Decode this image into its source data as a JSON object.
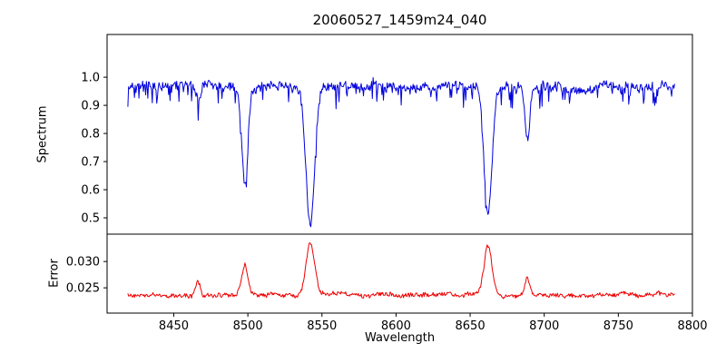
{
  "figure": {
    "background": "#ffffff",
    "frame_color": "#000000",
    "tick_color": "#000000",
    "text_color": "#000000"
  },
  "chart_data": [
    {
      "type": "line",
      "name": "spectrum",
      "title": "20060527_1459m24_040",
      "ylabel": "Spectrum",
      "line_color": "#0000dd",
      "xlim": [
        8405,
        8800
      ],
      "ylim": [
        0.442,
        1.152
      ],
      "yticks": [
        0.5,
        0.6,
        0.7,
        0.8,
        0.9,
        1.0
      ],
      "ytick_decimals": 1,
      "xticks": [],
      "x_start": 8419,
      "x_end": 8788,
      "step": 0.5,
      "continuum": 0.968,
      "noise": 0.013,
      "spike": 0.07,
      "features": [
        {
          "center": 8466.5,
          "amplitude": -0.055,
          "sigma": 1.5
        },
        {
          "center": 8498.0,
          "amplitude": -0.33,
          "sigma": 2.1
        },
        {
          "center": 8542.1,
          "amplitude": -0.49,
          "sigma": 2.9
        },
        {
          "center": 8662.1,
          "amplitude": -0.46,
          "sigma": 2.6
        },
        {
          "center": 8688.6,
          "amplitude": -0.18,
          "sigma": 1.7
        }
      ],
      "grid": false,
      "legend": "none"
    },
    {
      "type": "line",
      "name": "error",
      "ylabel": "Error",
      "xlabel": "Wavelength",
      "line_color": "#ee0000",
      "xlim": [
        8405,
        8800
      ],
      "ylim": [
        0.0202,
        0.0352
      ],
      "yticks": [
        0.025,
        0.03
      ],
      "ytick_decimals": 3,
      "xticks": [
        8450,
        8500,
        8550,
        8600,
        8650,
        8700,
        8750,
        8800
      ],
      "x_start": 8419,
      "x_end": 8788,
      "step": 0.5,
      "continuum": 0.0236,
      "noise": 0.00035,
      "spike": 0,
      "features": [
        {
          "center": 8466.5,
          "amplitude": 0.0028,
          "sigma": 1.6
        },
        {
          "center": 8498.0,
          "amplitude": 0.0055,
          "sigma": 2.1
        },
        {
          "center": 8542.1,
          "amplitude": 0.01,
          "sigma": 2.9
        },
        {
          "center": 8662.1,
          "amplitude": 0.0092,
          "sigma": 2.6
        },
        {
          "center": 8688.6,
          "amplitude": 0.0033,
          "sigma": 1.7
        }
      ],
      "grid": false,
      "legend": "none"
    }
  ]
}
